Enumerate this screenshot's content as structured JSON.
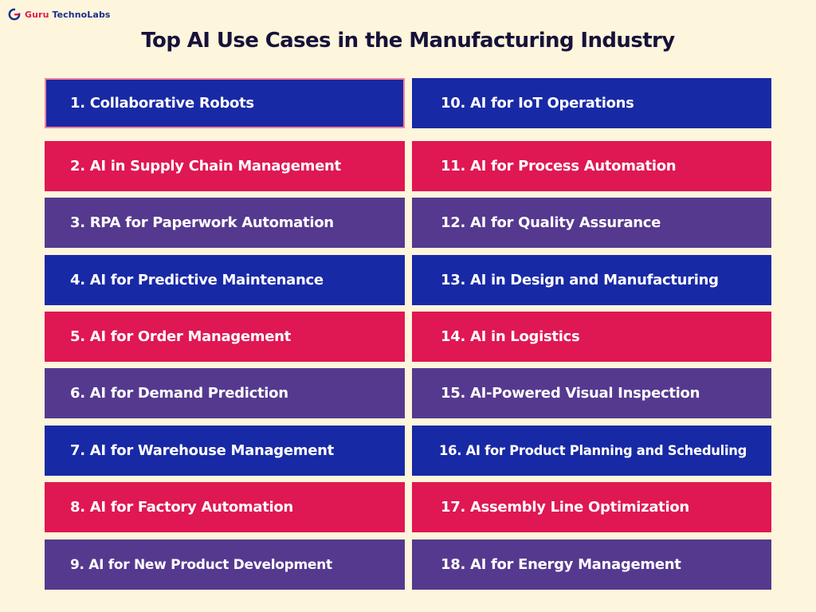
{
  "brand": {
    "name_part1": "Guru",
    "name_part2": "TechnoLabs",
    "colors": {
      "primary": "#e4194e",
      "secondary": "#1b2d8e"
    }
  },
  "title": "Top AI Use Cases in the Manufacturing Industry",
  "colors": {
    "background": "#fdf5dc",
    "blue": "#1829a5",
    "red": "#df1752",
    "purple": "#55398f"
  },
  "use_cases": {
    "left": [
      "1. Collaborative Robots",
      "2. AI in Supply Chain Management",
      "3. RPA for Paperwork Automation",
      "4. AI for Predictive Maintenance",
      "5. AI for Order Management",
      "6. AI for Demand Prediction",
      "7. AI for Warehouse Management",
      "8. AI for Factory Automation",
      "9. AI for New Product Development"
    ],
    "right": [
      "10. AI for IoT Operations",
      "11. AI for Process Automation",
      "12. AI for Quality Assurance",
      "13. AI in Design and Manufacturing",
      "14. AI in Logistics",
      "15. AI-Powered Visual Inspection",
      "16. AI for Product Planning and Scheduling",
      "17. Assembly Line Optimization",
      "18. AI for Energy Management"
    ]
  }
}
